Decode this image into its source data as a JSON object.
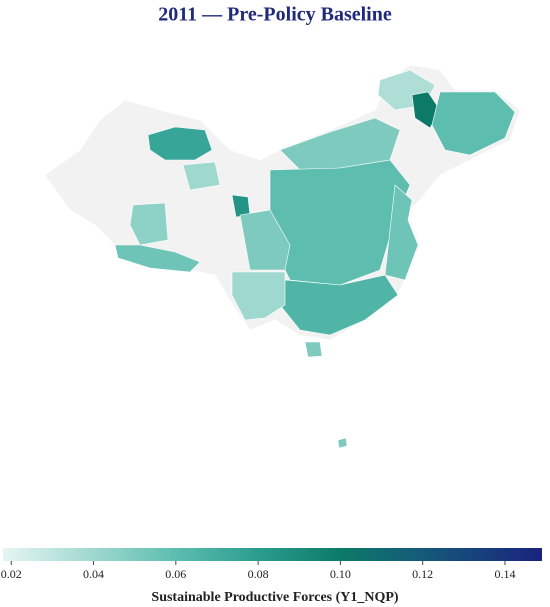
{
  "chart_data": {
    "type": "choropleth",
    "title": "2011 — Pre-Policy Baseline",
    "missing_color": "#f2f2f2",
    "values": [
      0.075,
      0.04,
      0.045,
      0.055,
      0.085,
      0.035,
      0.1,
      0.06,
      0.05,
      0.06,
      0.055,
      0.065,
      0.05,
      0.04,
      0.05,
      0.05
    ],
    "colorbar": {
      "label": "Sustainable Productive Forces (Y1_NQP)",
      "range": [
        0.018,
        0.149
      ],
      "ticks": [
        0.02,
        0.04,
        0.06,
        0.08,
        {
          "value": 0.1,
          "label": "0.10"
        },
        0.12,
        0.14
      ],
      "colorscale": [
        [
          0.018,
          "#e6f5f2"
        ],
        [
          0.06,
          "#5dbdaf"
        ],
        [
          0.08,
          "#2a9d8f"
        ],
        [
          0.1,
          "#0d7a68"
        ],
        [
          0.12,
          "#145a7a"
        ],
        [
          0.149,
          "#1a237e"
        ]
      ]
    }
  }
}
